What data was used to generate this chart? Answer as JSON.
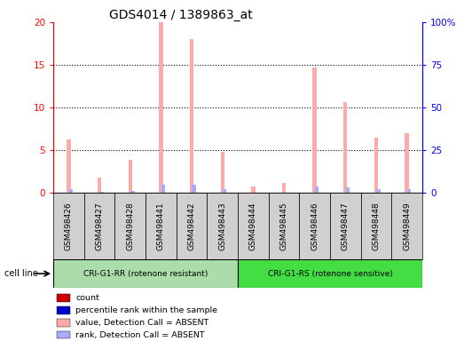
{
  "title": "GDS4014 / 1389863_at",
  "samples": [
    "GSM498426",
    "GSM498427",
    "GSM498428",
    "GSM498441",
    "GSM498442",
    "GSM498443",
    "GSM498444",
    "GSM498445",
    "GSM498446",
    "GSM498447",
    "GSM498448",
    "GSM498449"
  ],
  "pink_values": [
    6.2,
    1.8,
    3.9,
    20.0,
    18.0,
    4.8,
    0.7,
    1.1,
    14.7,
    10.6,
    6.5,
    7.0
  ],
  "blue_rank_values": [
    2.1,
    0.5,
    1.1,
    4.6,
    4.5,
    2.0,
    0.15,
    0.2,
    3.8,
    3.0,
    1.9,
    2.3
  ],
  "ylim_left": [
    0,
    20
  ],
  "ylim_right": [
    0,
    100
  ],
  "yticks_left": [
    0,
    5,
    10,
    15,
    20
  ],
  "yticks_right": [
    0,
    25,
    50,
    75,
    100
  ],
  "ytick_labels_left": [
    "0",
    "5",
    "10",
    "15",
    "20"
  ],
  "ytick_labels_right": [
    "0",
    "25",
    "50",
    "75",
    "100%"
  ],
  "group1_label": "CRI-G1-RR (rotenone resistant)",
  "group2_label": "CRI-G1-RS (rotenone sensitive)",
  "cell_line_label": "cell line",
  "group1_count": 6,
  "group2_count": 6,
  "legend_items": [
    {
      "color": "#cc0000",
      "label": "count"
    },
    {
      "color": "#0000cc",
      "label": "percentile rank within the sample"
    },
    {
      "color": "#ffaaaa",
      "label": "value, Detection Call = ABSENT"
    },
    {
      "color": "#aaaaff",
      "label": "rank, Detection Call = ABSENT"
    }
  ],
  "bar_bg_color": "#d0d0d0",
  "group1_bg": "#aaddaa",
  "group2_bg": "#44dd44",
  "pink_color": "#ffaaaa",
  "blue_color": "#aaaaff",
  "title_fontsize": 10,
  "tick_fontsize": 7.5,
  "label_fontsize": 7
}
